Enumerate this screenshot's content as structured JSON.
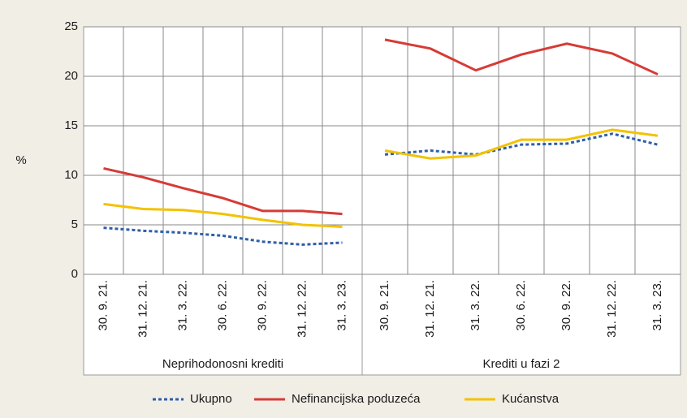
{
  "chart_data": {
    "type": "line",
    "y_label": "%",
    "ylim": [
      0,
      25
    ],
    "yticks": [
      0,
      5,
      10,
      15,
      20,
      25
    ],
    "grid": true,
    "series": [
      {
        "name": "Ukupno",
        "color": "#2f5fa6",
        "dashed": true
      },
      {
        "name": "Nefinancijska poduzeća",
        "color": "#d63b36",
        "dashed": false
      },
      {
        "name": "Kućanstva",
        "color": "#f3c200",
        "dashed": false
      }
    ],
    "panels": [
      {
        "title": "Neprihodonosni krediti",
        "categories": [
          "30. 9. 21.",
          "31. 12. 21.",
          "31. 3. 22.",
          "30. 6. 22.",
          "30. 9. 22.",
          "31. 12. 22.",
          "31. 3. 23."
        ],
        "series": [
          {
            "values": [
              4.7,
              4.4,
              4.2,
              3.9,
              3.3,
              3.0,
              3.2
            ]
          },
          {
            "values": [
              10.7,
              9.8,
              8.7,
              7.7,
              6.4,
              6.4,
              6.1
            ]
          },
          {
            "values": [
              7.1,
              6.6,
              6.5,
              6.1,
              5.5,
              5.0,
              4.8
            ]
          }
        ]
      },
      {
        "title": "Krediti u fazi 2",
        "categories": [
          "30. 9. 21.",
          "31. 12. 21.",
          "31. 3. 22.",
          "30. 6. 22.",
          "30. 9. 22.",
          "31. 12. 22.",
          "31. 3. 23."
        ],
        "series": [
          {
            "values": [
              12.1,
              12.5,
              12.1,
              13.1,
              13.2,
              14.2,
              13.1
            ]
          },
          {
            "values": [
              23.7,
              22.8,
              20.6,
              22.2,
              23.3,
              22.3,
              20.2
            ]
          },
          {
            "values": [
              12.5,
              11.7,
              12.0,
              13.6,
              13.6,
              14.6,
              14.0
            ]
          }
        ]
      }
    ]
  }
}
